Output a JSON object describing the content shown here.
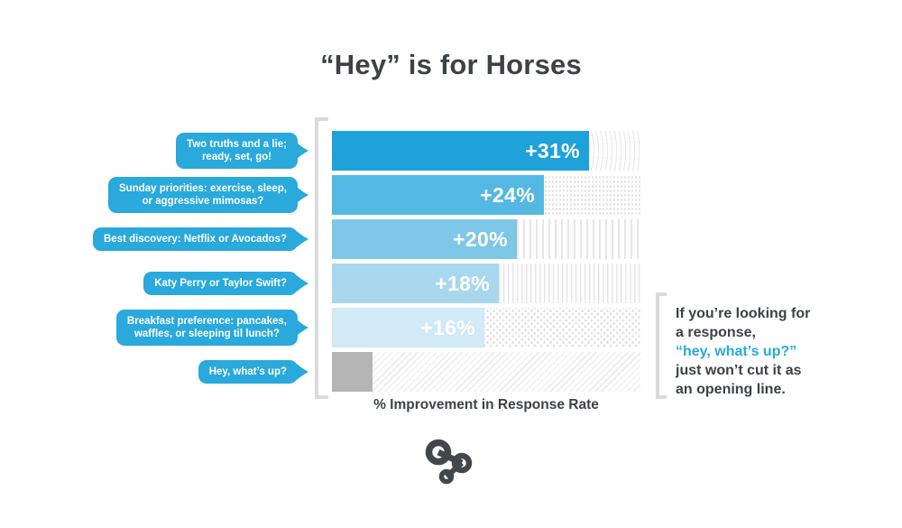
{
  "title": "“Hey” is for Horses",
  "axis_label": "% Improvement in Response Rate",
  "note": {
    "line1": "If you’re looking for",
    "line2": "a response,",
    "line3": "“hey, what’s up?”",
    "line4": "just won’t cut it as",
    "line5": "an opening line."
  },
  "colors": {
    "bubble_blue": "#29a9dc",
    "note_highlight_blue": "#29a9dc",
    "dark_text": "#3d4247",
    "bracket_gray": "#dadada",
    "baseline_bar_gray": "#b5b5b5",
    "pattern_gray": "#e7e7e7"
  },
  "logo": {
    "name": "hinge-logo",
    "color": "#43474b"
  },
  "chart_data": {
    "type": "bar",
    "orientation": "horizontal",
    "title": "“Hey” is for Horses",
    "xlabel": "% Improvement in Response Rate",
    "xlim": [
      0,
      37
    ],
    "grid": false,
    "legend": "none",
    "categories": [
      "Two truths and a lie; ready, set, go!",
      "Sunday priorities: exercise, sleep, or aggressive mimosas?",
      "Best discovery: Netflix or Avocados?",
      "Katy Perry or Taylor Swift?",
      "Breakfast preference: pancakes, waffles, or sleeping til lunch?",
      "Hey, what’s up?"
    ],
    "bubble_lines": [
      "Two truths and a lie;\nready, set, go!",
      "Sunday priorities: exercise, sleep,\nor aggressive mimosas?",
      "Best discovery: Netflix or Avocados?",
      "Katy Perry or Taylor Swift?",
      "Breakfast preference: pancakes,\nwaffles, or sleeping til lunch?",
      "Hey, what’s up?"
    ],
    "values": [
      31,
      24,
      20,
      18,
      16,
      0
    ],
    "value_labels": [
      "+31%",
      "+24%",
      "+20%",
      "+18%",
      "+16%",
      ""
    ],
    "bar_colors": [
      "#1fa2d9",
      "#53b8e2",
      "#7fc7e6",
      "#a9d8ee",
      "#d2e9f6",
      "#b5b5b5"
    ],
    "bar_width_pct": [
      83.3,
      68.7,
      59.9,
      54.1,
      49.4,
      13.2
    ],
    "patterns": [
      "waves",
      "dots",
      "stripes-wide",
      "stripes-thin",
      "diamonds",
      "diagonal"
    ]
  }
}
